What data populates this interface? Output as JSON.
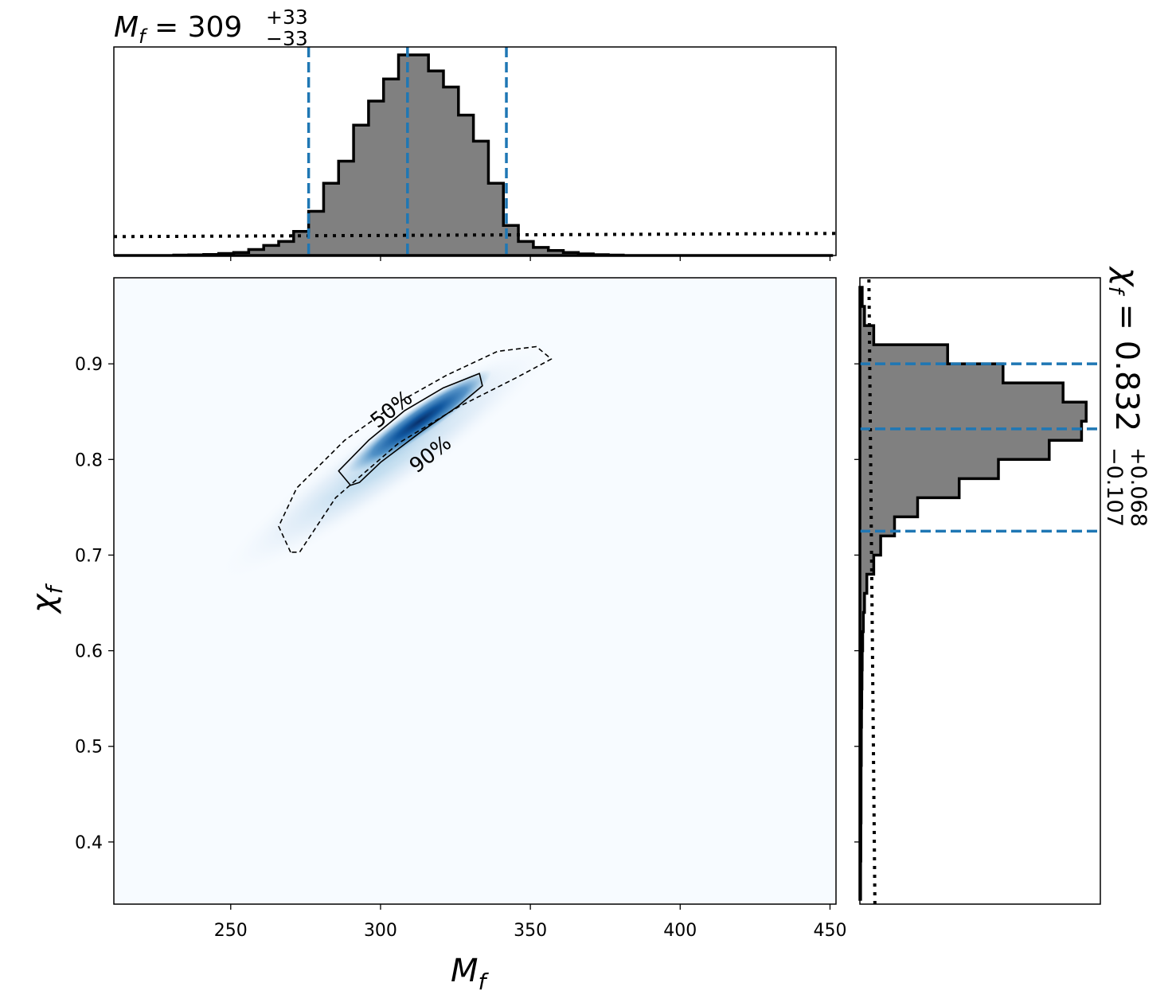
{
  "chart_data": [
    {
      "type": "heatmap",
      "panel": "joint",
      "xlabel": "M_f",
      "ylabel": "χ_f",
      "xlim": [
        211,
        452
      ],
      "ylim": [
        0.335,
        0.99
      ],
      "xticks": [
        250,
        300,
        350,
        400,
        450
      ],
      "yticks": [
        0.4,
        0.5,
        0.6,
        0.7,
        0.8,
        0.9
      ],
      "xtick_labels": [
        "250",
        "300",
        "350",
        "400",
        "450"
      ],
      "ytick_labels": [
        "0.4",
        "0.5",
        "0.6",
        "0.7",
        "0.8",
        "0.9"
      ],
      "colormap": "Blues",
      "density_peak": {
        "x": 313,
        "y": 0.84
      },
      "contours": [
        {
          "label": "50%",
          "style": "solid",
          "points": [
            [
              290,
              0.773
            ],
            [
              286,
              0.788
            ],
            [
              296,
              0.82
            ],
            [
              308,
              0.851
            ],
            [
              321,
              0.875
            ],
            [
              333,
              0.89
            ],
            [
              334,
              0.877
            ],
            [
              326,
              0.856
            ],
            [
              314,
              0.83
            ],
            [
              300,
              0.797
            ],
            [
              293,
              0.776
            ]
          ]
        },
        {
          "label": "90%",
          "style": "dashed",
          "points": [
            [
              270,
              0.703
            ],
            [
              266,
              0.73
            ],
            [
              272,
              0.77
            ],
            [
              288,
              0.82
            ],
            [
              305,
              0.858
            ],
            [
              322,
              0.888
            ],
            [
              339,
              0.913
            ],
            [
              352,
              0.918
            ],
            [
              357,
              0.905
            ],
            [
              345,
              0.885
            ],
            [
              326,
              0.855
            ],
            [
              306,
              0.817
            ],
            [
              285,
              0.76
            ],
            [
              273,
              0.703
            ]
          ]
        }
      ]
    },
    {
      "type": "bar",
      "panel": "top-marginal",
      "title_base": "M_f = 309",
      "title_sup": "+33",
      "title_sub": "−33",
      "xlim": [
        211,
        452
      ],
      "histogram": {
        "bin_edges": [
          211,
          216,
          221,
          226,
          231,
          236,
          241,
          246,
          251,
          256,
          261,
          266,
          271,
          276,
          281,
          286,
          291,
          296,
          301,
          306,
          311,
          316,
          321,
          326,
          331,
          336,
          341,
          346,
          351,
          356,
          361,
          366,
          371,
          376,
          381,
          386,
          391,
          396,
          401,
          406,
          411,
          416,
          421,
          426,
          431,
          436,
          441,
          446,
          451
        ],
        "counts": [
          0,
          0,
          0,
          0,
          0.002,
          0.003,
          0.005,
          0.01,
          0.015,
          0.03,
          0.05,
          0.07,
          0.12,
          0.22,
          0.36,
          0.47,
          0.65,
          0.77,
          0.88,
          1.0,
          1.0,
          0.92,
          0.84,
          0.7,
          0.57,
          0.36,
          0.15,
          0.07,
          0.04,
          0.025,
          0.015,
          0.008,
          0.004,
          0.002,
          0,
          0,
          0,
          0,
          0,
          0,
          0,
          0,
          0,
          0,
          0,
          0,
          0,
          0
        ]
      },
      "prior_level": 0.12,
      "quantile_lines": [
        276,
        309,
        342
      ]
    },
    {
      "type": "bar",
      "panel": "right-marginal",
      "title_base": "χ_f = 0.832",
      "title_sup": "+0.068",
      "title_sub": "−0.107",
      "ylim": [
        0.335,
        0.99
      ],
      "histogram": {
        "bin_edges": [
          0.34,
          0.36,
          0.38,
          0.4,
          0.42,
          0.44,
          0.46,
          0.48,
          0.5,
          0.52,
          0.54,
          0.56,
          0.58,
          0.6,
          0.62,
          0.64,
          0.66,
          0.68,
          0.7,
          0.72,
          0.74,
          0.76,
          0.78,
          0.8,
          0.82,
          0.84,
          0.86,
          0.88,
          0.9,
          0.92,
          0.94,
          0.96,
          0.98
        ],
        "counts": [
          0.003,
          0.003,
          0.004,
          0.004,
          0.005,
          0.005,
          0.005,
          0.006,
          0.006,
          0.007,
          0.008,
          0.009,
          0.01,
          0.012,
          0.015,
          0.02,
          0.03,
          0.06,
          0.09,
          0.15,
          0.25,
          0.43,
          0.6,
          0.82,
          0.96,
          0.98,
          0.88,
          0.62,
          0.38,
          0.06,
          0.02,
          0.01
        ]
      },
      "prior_level": 0.065,
      "quantile_lines": [
        0.725,
        0.832,
        0.9
      ]
    }
  ]
}
